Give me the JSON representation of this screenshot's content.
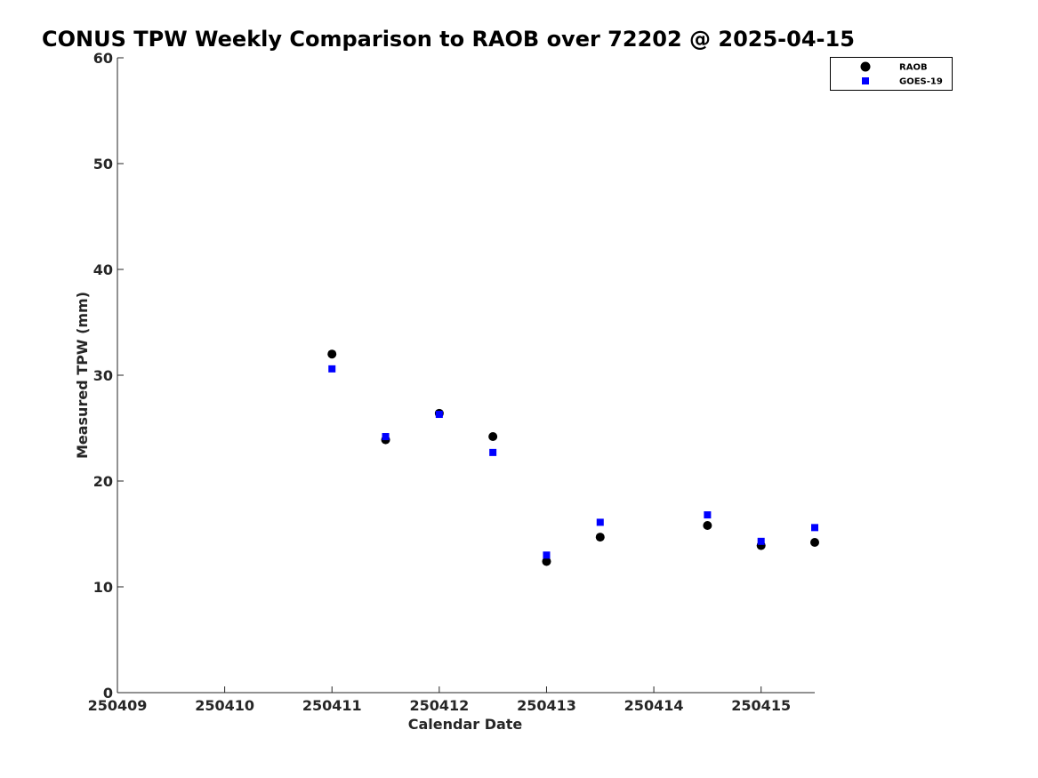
{
  "chart_data": {
    "type": "scatter",
    "title": "CONUS TPW Weekly Comparison to RAOB over 72202 @ 2025-04-15",
    "xlabel": "Calendar Date",
    "ylabel": "Measured TPW (mm)",
    "xlim": [
      250409,
      250415.5
    ],
    "ylim": [
      0,
      60
    ],
    "x_ticks": [
      250409,
      250410,
      250411,
      250412,
      250413,
      250414,
      250415
    ],
    "x_tick_labels": [
      "250409",
      "250410",
      "250411",
      "250412",
      "250413",
      "250414",
      "250415"
    ],
    "y_ticks": [
      0,
      10,
      20,
      30,
      40,
      50,
      60
    ],
    "y_tick_labels": [
      "0",
      "10",
      "20",
      "30",
      "40",
      "50",
      "60"
    ],
    "grid": false,
    "legend_position": "top-right",
    "series": [
      {
        "name": "RAOB",
        "marker": "circle",
        "color": "#000000",
        "x": [
          250411,
          250411.5,
          250412,
          250412.5,
          250413,
          250413.5,
          250414.5,
          250415,
          250415.5
        ],
        "values": [
          32.0,
          23.9,
          26.4,
          24.2,
          12.4,
          14.7,
          15.8,
          13.9,
          14.2
        ]
      },
      {
        "name": "GOES-19",
        "marker": "square",
        "color": "#0000ff",
        "x": [
          250411,
          250411.5,
          250412,
          250412.5,
          250413,
          250413.5,
          250414.5,
          250415,
          250415.5
        ],
        "values": [
          30.6,
          24.2,
          26.3,
          22.7,
          13.0,
          16.1,
          16.8,
          14.3,
          15.6
        ]
      }
    ]
  }
}
